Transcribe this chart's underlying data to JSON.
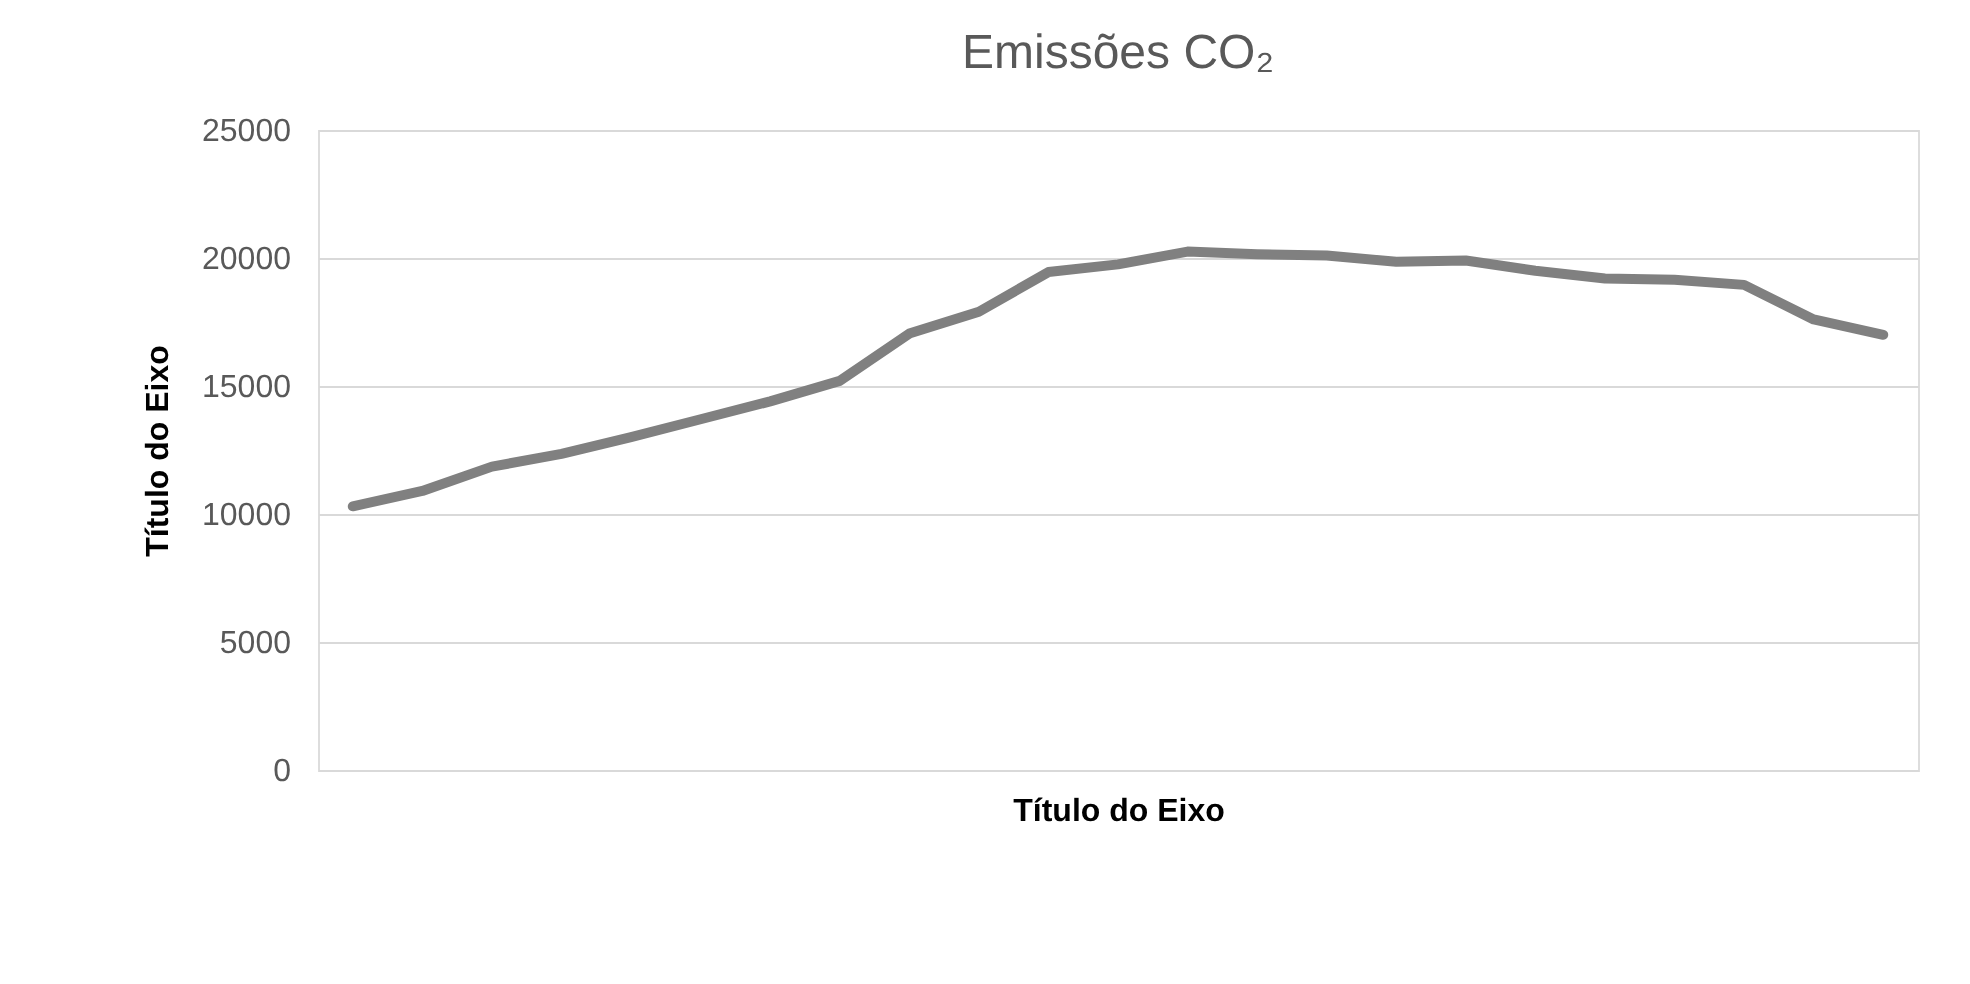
{
  "chart_data": {
    "type": "line",
    "title": "Emissões CO₂",
    "xlabel": "Título do Eixo",
    "ylabel": "Título do Eixo",
    "categories": [
      null,
      null,
      null,
      null,
      null,
      null,
      null,
      null,
      null,
      null,
      null,
      null,
      null,
      null,
      null,
      null,
      null,
      null,
      null,
      null,
      null,
      null,
      null
    ],
    "series": [
      {
        "color": "#808080",
        "values": [
          10300,
          10900,
          11850,
          12350,
          13000,
          13700,
          14400,
          15200,
          17050,
          17900,
          19450,
          19750,
          20250,
          20150,
          20100,
          19850,
          19900,
          19500,
          19200,
          19150,
          18950,
          17600,
          17000
        ]
      }
    ],
    "ylim": [
      0,
      25000
    ],
    "yticks": [
      0,
      5000,
      10000,
      15000,
      20000,
      25000
    ],
    "grid": "y",
    "marker": "none",
    "line_style": "solid",
    "tick_labels": "y"
  }
}
